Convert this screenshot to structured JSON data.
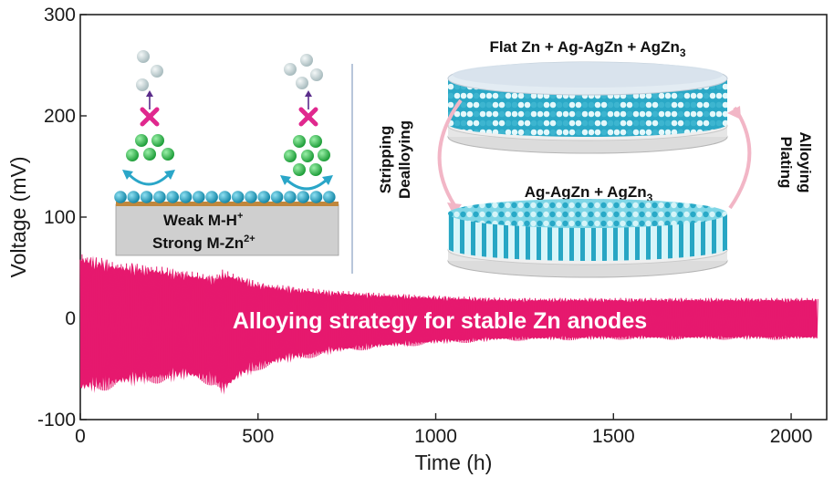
{
  "chart_data": {
    "type": "line",
    "title": "",
    "xlabel": "Time (h)",
    "ylabel": "Voltage (mV)",
    "xlim": [
      0,
      2100
    ],
    "ylim": [
      -100,
      300
    ],
    "xticks": [
      "0",
      "500",
      "1000",
      "1500",
      "2000"
    ],
    "yticks": [
      "300",
      "200",
      "100",
      "0",
      "-100"
    ],
    "series": [
      {
        "color": "#e6196e",
        "envelope_x": [
          0,
          100,
          200,
          300,
          380,
          400,
          450,
          500,
          600,
          700,
          800,
          1000,
          1200,
          1500,
          1800,
          2075
        ],
        "upper_mV": [
          58,
          50,
          47,
          42,
          38,
          43,
          38,
          32,
          28,
          25,
          23,
          20,
          18,
          18,
          18,
          18
        ],
        "lower_mV": [
          -68,
          -62,
          -58,
          -55,
          -60,
          -70,
          -55,
          -46,
          -38,
          -32,
          -28,
          -23,
          -20,
          -19,
          -19,
          -19
        ]
      }
    ],
    "banner": "Alloying strategy for stable Zn anodes",
    "inset_left": {
      "line1": "Weak  M-H",
      "line1_sup": "+",
      "line2": "Strong M-Zn",
      "line2_sup": "2+"
    },
    "inset_right": {
      "top_label": "Flat Zn + Ag-AgZn + AgZn",
      "top_label_sub": "3",
      "bottom_label": "Ag-AgZn + AgZn",
      "bottom_label_sub": "3",
      "left_line1": "Stripping",
      "left_line2": "Dealloying",
      "right_line1": "Plating",
      "right_line2": "Alloying"
    }
  },
  "colors": {
    "signal": "#e6196e",
    "atom_blue": "#1fa8c8",
    "atom_light": "#c9eef5",
    "atom_green": "#2bbf4a",
    "cross": "#e0288e"
  }
}
